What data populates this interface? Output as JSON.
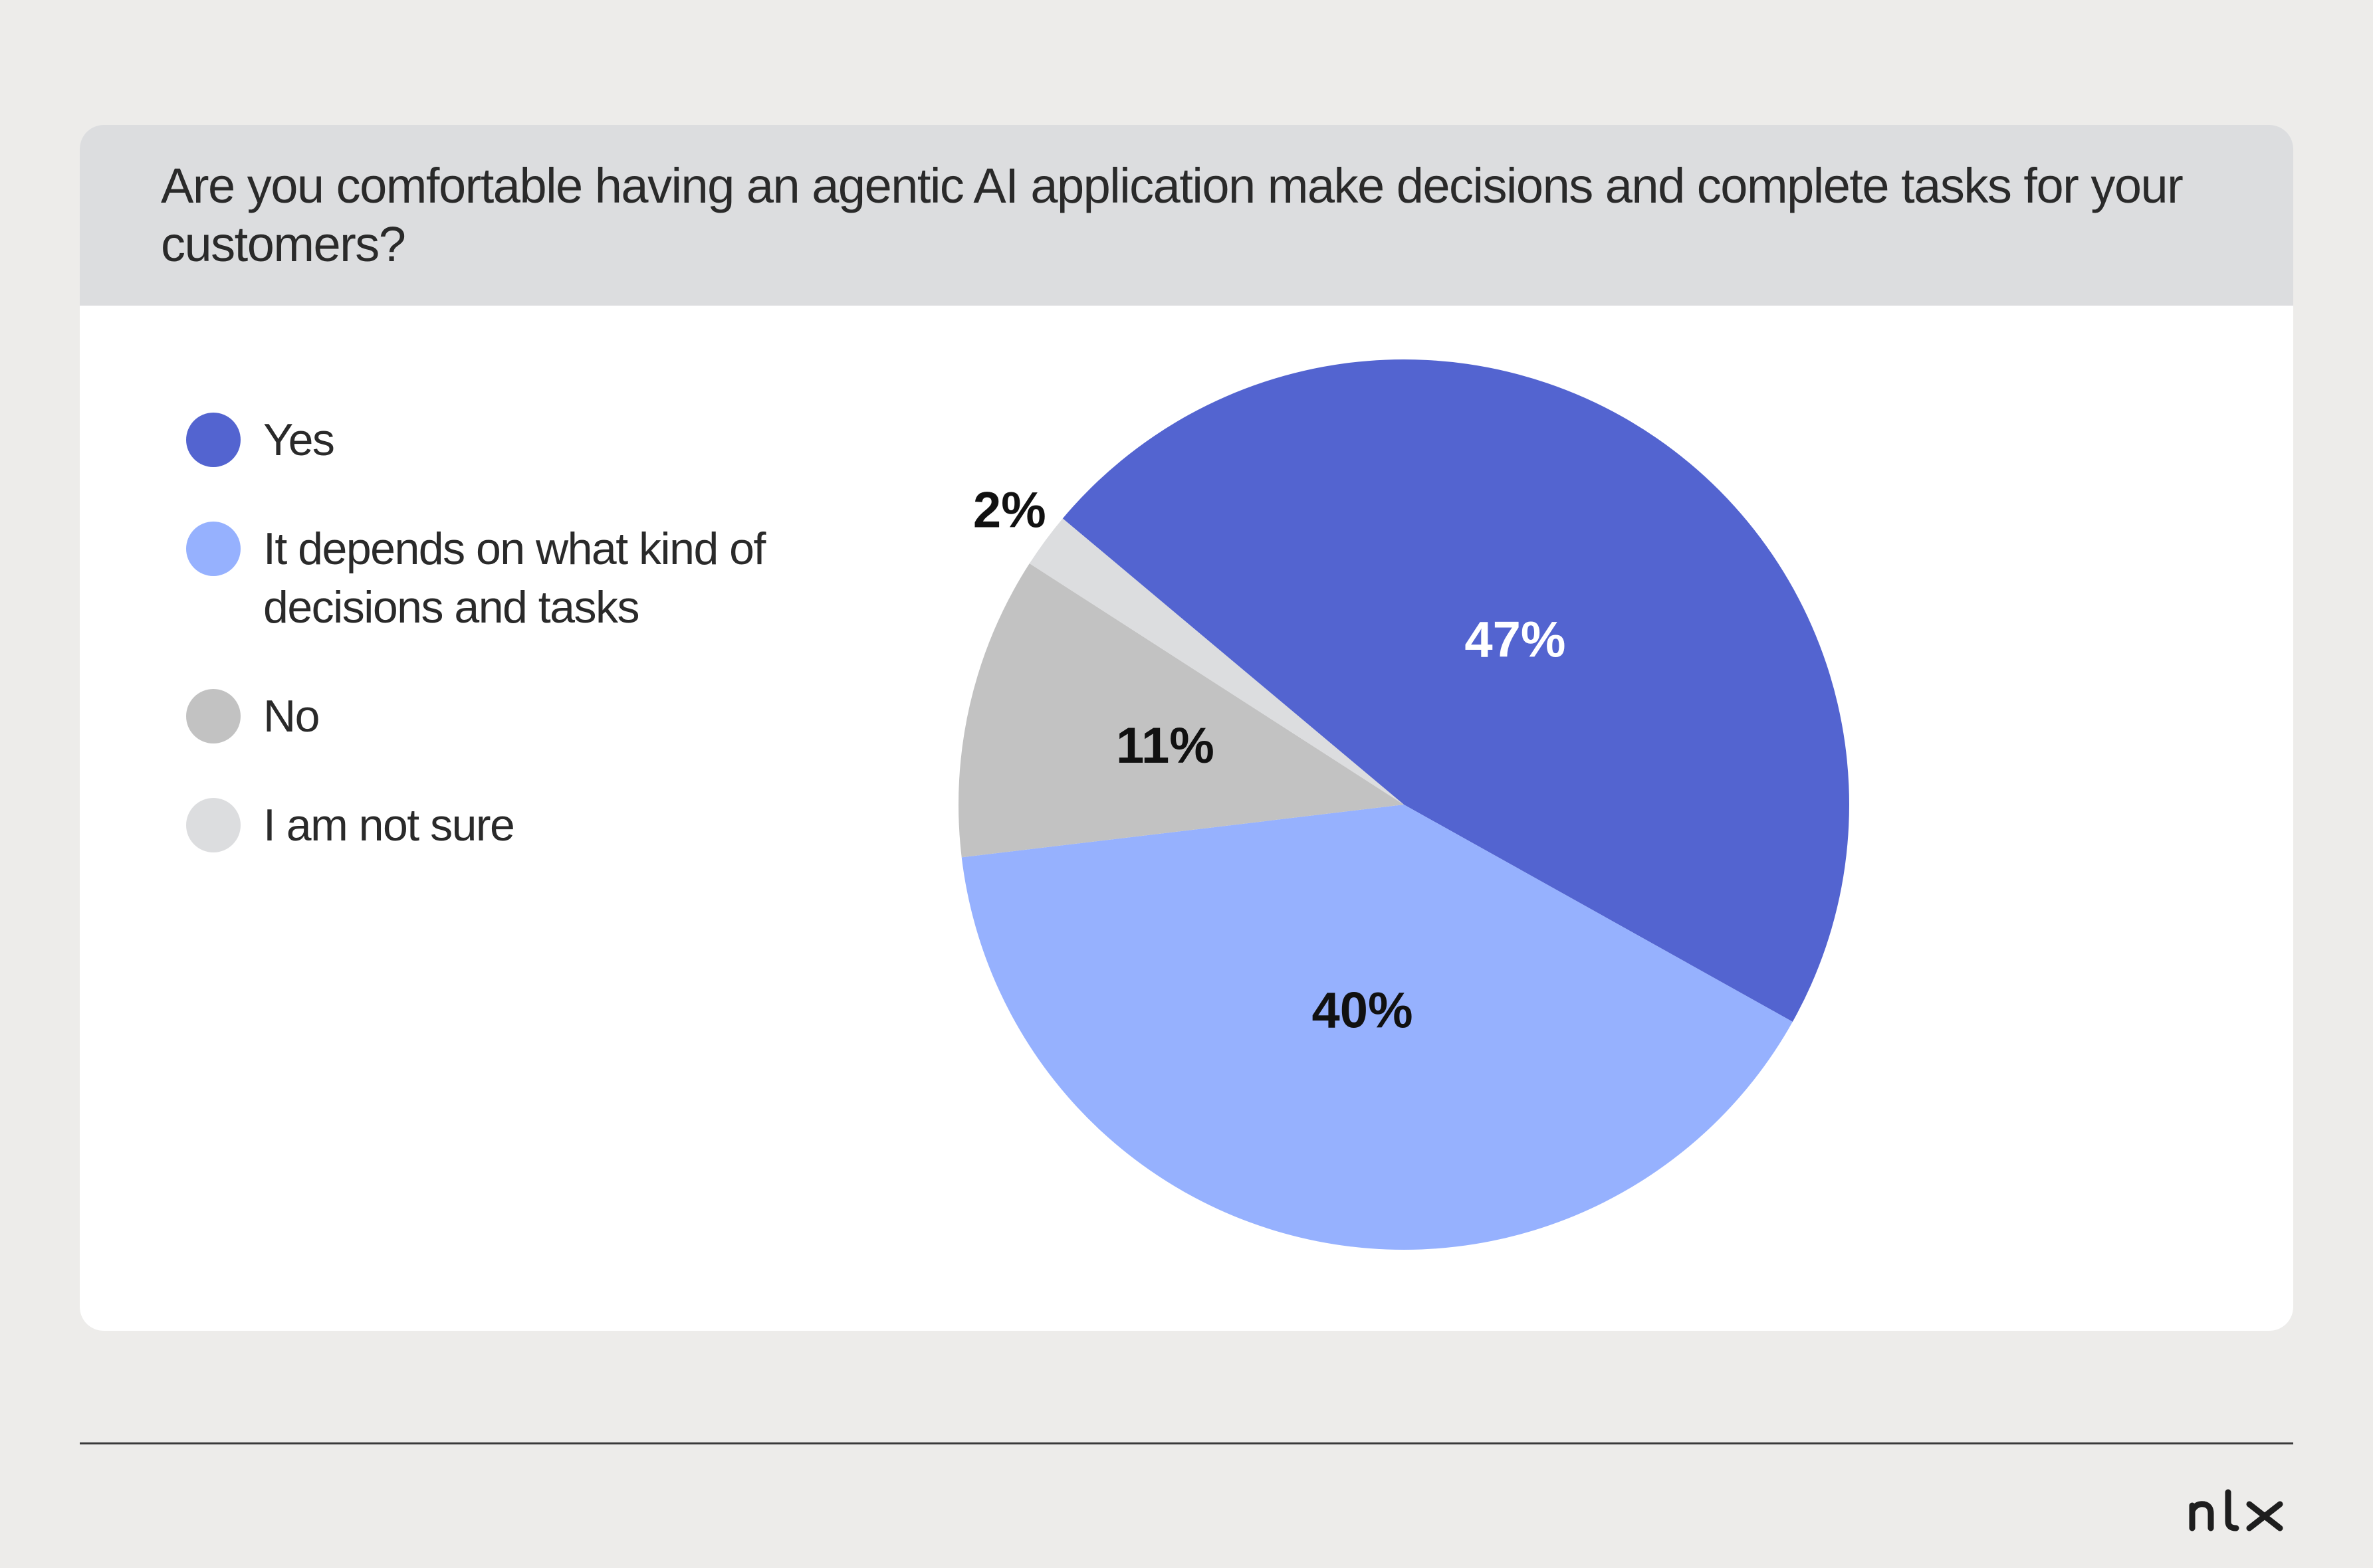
{
  "card": {
    "question": "Are you comfortable having an agentic AI application make decisions and complete tasks for your customers?"
  },
  "chart_data": {
    "type": "pie",
    "title": "Are you comfortable having an agentic AI application make decisions and complete tasks for your customers?",
    "categories": [
      "Yes",
      "It depends on what kind of decisions and tasks",
      "No",
      "I am not sure"
    ],
    "values": [
      47,
      40,
      11,
      2
    ],
    "labels": [
      "47%",
      "40%",
      "11%",
      "2%"
    ],
    "colors": [
      "#5364d0",
      "#96b1fe",
      "#c2c2c2",
      "#dcdddf"
    ],
    "label_colors": [
      "#ffffff",
      "#111111",
      "#111111",
      "#111111"
    ],
    "legend_position": "left"
  },
  "legend": [
    {
      "label": "Yes",
      "color": "#5364d0"
    },
    {
      "label": "It depends on what kind of decisions and tasks",
      "color": "#96b1fe"
    },
    {
      "label": "No",
      "color": "#c2c2c2"
    },
    {
      "label": "I am not sure",
      "color": "#dcdddf"
    }
  ],
  "logo": {
    "text": "nlx",
    "icon": "nlx-logo"
  }
}
